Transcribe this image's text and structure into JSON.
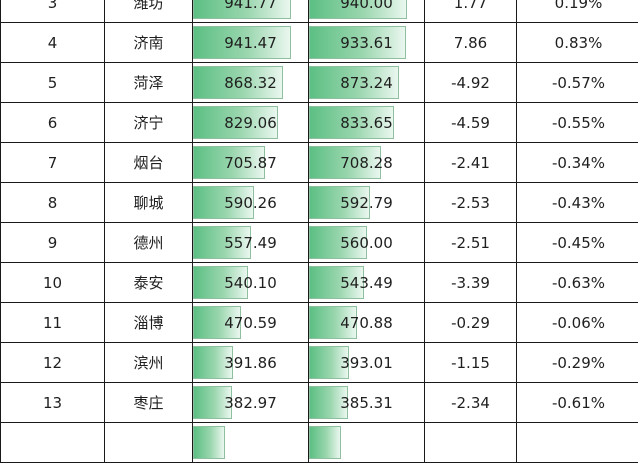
{
  "rows": [
    {
      "rank": "3",
      "city": "潍坊",
      "v1": "941.77",
      "v2": "940.00",
      "diff": "1.77",
      "pct": "0.19%",
      "v1_fill": 0.85,
      "v2_fill": 0.85
    },
    {
      "rank": "4",
      "city": "济南",
      "v1": "941.47",
      "v2": "933.61",
      "diff": "7.86",
      "pct": "0.83%",
      "v1_fill": 0.85,
      "v2_fill": 0.84
    },
    {
      "rank": "5",
      "city": "菏泽",
      "v1": "868.32",
      "v2": "873.24",
      "diff": "-4.92",
      "pct": "-0.57%",
      "v1_fill": 0.78,
      "v2_fill": 0.78
    },
    {
      "rank": "6",
      "city": "济宁",
      "v1": "829.06",
      "v2": "833.65",
      "diff": "-4.59",
      "pct": "-0.55%",
      "v1_fill": 0.74,
      "v2_fill": 0.74
    },
    {
      "rank": "7",
      "city": "烟台",
      "v1": "705.87",
      "v2": "708.28",
      "diff": "-2.41",
      "pct": "-0.34%",
      "v1_fill": 0.63,
      "v2_fill": 0.63
    },
    {
      "rank": "8",
      "city": "聊城",
      "v1": "590.26",
      "v2": "592.79",
      "diff": "-2.53",
      "pct": "-0.43%",
      "v1_fill": 0.53,
      "v2_fill": 0.53
    },
    {
      "rank": "9",
      "city": "德州",
      "v1": "557.49",
      "v2": "560.00",
      "diff": "-2.51",
      "pct": "-0.45%",
      "v1_fill": 0.5,
      "v2_fill": 0.5
    },
    {
      "rank": "10",
      "city": "泰安",
      "v1": "540.10",
      "v2": "543.49",
      "diff": "-3.39",
      "pct": "-0.63%",
      "v1_fill": 0.48,
      "v2_fill": 0.48
    },
    {
      "rank": "11",
      "city": "淄博",
      "v1": "470.59",
      "v2": "470.88",
      "diff": "-0.29",
      "pct": "-0.06%",
      "v1_fill": 0.42,
      "v2_fill": 0.42
    },
    {
      "rank": "12",
      "city": "滨州",
      "v1": "391.86",
      "v2": "393.01",
      "diff": "-1.15",
      "pct": "-0.29%",
      "v1_fill": 0.35,
      "v2_fill": 0.35
    },
    {
      "rank": "13",
      "city": "枣庄",
      "v1": "382.97",
      "v2": "385.31",
      "diff": "-2.34",
      "pct": "-0.61%",
      "v1_fill": 0.34,
      "v2_fill": 0.34
    },
    {
      "rank": "",
      "city": "",
      "v1": "",
      "v2": "",
      "diff": "",
      "pct": "",
      "v1_fill": 0.28,
      "v2_fill": 0.28
    }
  ],
  "colors": {
    "bar_start": "#5cbf83",
    "bar_end": "#eaf7ef",
    "grid": "#1a1a1a"
  }
}
